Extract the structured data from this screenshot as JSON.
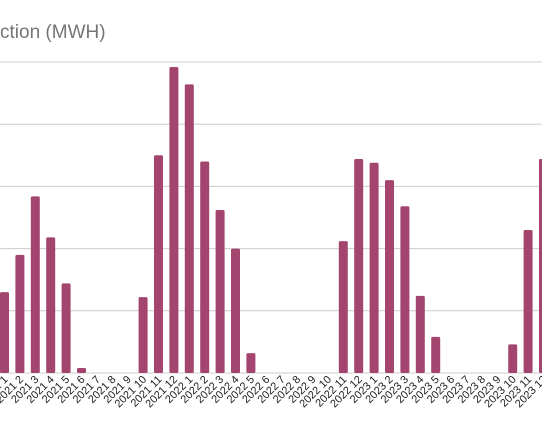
{
  "chart_data": {
    "type": "bar",
    "title": "ction (MWH)",
    "xlabel": "",
    "ylabel": "",
    "ylim": [
      0,
      250
    ],
    "grid": true,
    "legend": "none",
    "bar_color": "#a4456f",
    "grid_color": "#cccccc",
    "categories": [
      "2021 1",
      "2021 2",
      "2021 3",
      "2021 4",
      "2021 5",
      "2021 6",
      "2021 7",
      "2021 8",
      "2021 9",
      "2021 10",
      "2021 11",
      "2021 12",
      "2022 1",
      "2022 2",
      "2022 3",
      "2022 4",
      "2022 5",
      "2022 6",
      "2022 7",
      "2022 8",
      "2022 9",
      "2022 10",
      "2022 11",
      "2022 12",
      "2023 1",
      "2023 2",
      "2023 3",
      "2023 4",
      "2023 5",
      "2023 6",
      "2023 7",
      "2023 8",
      "2023 9",
      "2023 10",
      "2023 11",
      "2023 12"
    ],
    "values": [
      65,
      95,
      142,
      109,
      72,
      4,
      0,
      0,
      0,
      61,
      175,
      246,
      232,
      170,
      131,
      100,
      16,
      0,
      0,
      0,
      0,
      0,
      106,
      172,
      169,
      155,
      134,
      62,
      29,
      0,
      0,
      0,
      0,
      23,
      115,
      172
    ]
  }
}
